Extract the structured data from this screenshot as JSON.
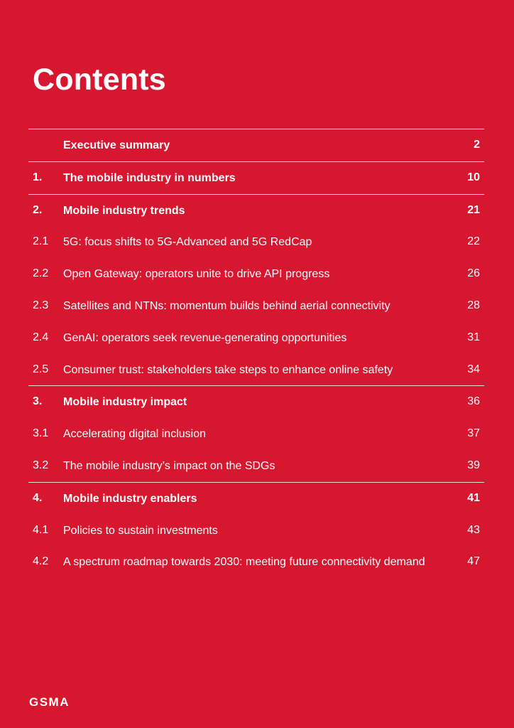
{
  "page": {
    "title": "Contents",
    "logo_text": "GSMA"
  },
  "toc": {
    "exec": {
      "num": "",
      "label": "Executive summary",
      "page": "2"
    },
    "s1": {
      "num": "1.",
      "label": "The mobile industry in numbers",
      "page": "10"
    },
    "s2": {
      "num": "2.",
      "label": "Mobile industry trends",
      "page": "21"
    },
    "s2_1": {
      "num": "2.1",
      "label": "5G: focus shifts to 5G-Advanced and 5G RedCap",
      "page": "22"
    },
    "s2_2": {
      "num": "2.2",
      "label": "Open Gateway: operators unite to drive API progress",
      "page": "26"
    },
    "s2_3": {
      "num": "2.3",
      "label": "Satellites and NTNs: momentum builds behind aerial connectivity",
      "page": "28"
    },
    "s2_4": {
      "num": "2.4",
      "label": "GenAI: operators seek revenue-generating opportunities",
      "page": "31"
    },
    "s2_5": {
      "num": "2.5",
      "label": "Consumer trust: stakeholders take steps to enhance online safety",
      "page": "34"
    },
    "s3": {
      "num": "3.",
      "label": "Mobile industry impact",
      "page": "36"
    },
    "s3_1": {
      "num": "3.1",
      "label": "Accelerating digital inclusion",
      "page": "37"
    },
    "s3_2": {
      "num": "3.2",
      "label": "The mobile industry’s impact on the SDGs",
      "page": "39"
    },
    "s4": {
      "num": "4.",
      "label": "Mobile industry enablers",
      "page": "41"
    },
    "s4_1": {
      "num": "4.1",
      "label": "Policies to sustain investments",
      "page": "43"
    },
    "s4_2": {
      "num": "4.2",
      "label": "A spectrum roadmap towards 2030: meeting future connectivity demand",
      "page": "47"
    }
  },
  "colors": {
    "background": "#D71730",
    "text": "#FFFFFF"
  }
}
